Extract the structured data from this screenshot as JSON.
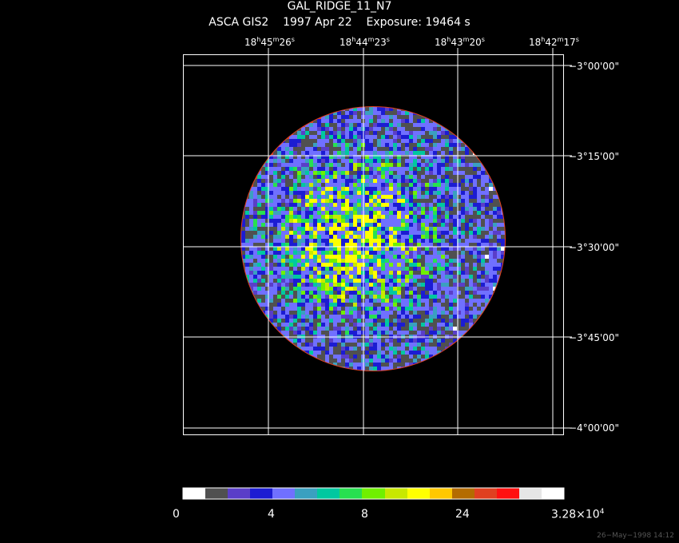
{
  "header": {
    "title": "GAL_RIDGE_11_N7",
    "subtitle": "ASCA GIS2    1997 Apr 22    Exposure: 19464 s"
  },
  "axes": {
    "ra_ticks": [
      {
        "h": "18",
        "m": "45",
        "s": "26"
      },
      {
        "h": "18",
        "m": "44",
        "s": "23"
      },
      {
        "h": "18",
        "m": "43",
        "s": "20"
      },
      {
        "h": "18",
        "m": "42",
        "s": "17"
      }
    ],
    "dec_ticks": [
      "−3°00'00\"",
      "−3°15'00\"",
      "−3°30'00\"",
      "−3°45'00\"",
      "−4°00'00\""
    ]
  },
  "colorbar": {
    "colors": [
      "#ffffff",
      "#505050",
      "#5a3ec8",
      "#1c1cd2",
      "#7070ff",
      "#3aa0c0",
      "#00c8a0",
      "#28e050",
      "#70f000",
      "#c8e800",
      "#ffff00",
      "#ffc800",
      "#b46c00",
      "#e04020",
      "#ff1010",
      "#e6e6e6",
      "#ffffff"
    ],
    "labels": {
      "l0": "0",
      "l1": "4",
      "l2": "8",
      "l3": "24",
      "l4_base": "3.28×10",
      "l4_exp": "4"
    }
  },
  "footer": {
    "stamp": "26−May−1998 14:12"
  }
}
